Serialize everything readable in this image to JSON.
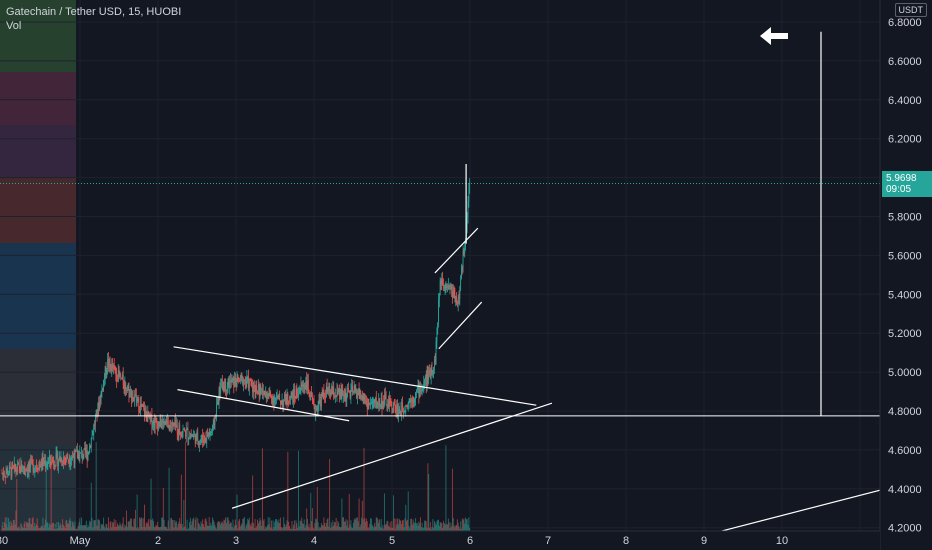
{
  "header": {
    "symbol_line": "Gatechain / Tether USD, 15, HUOBI",
    "vol_label": "Vol",
    "currency": "USDT"
  },
  "chart_data": {
    "type": "candlestick",
    "title": "Gatechain / Tether USD, 15, HUOBI",
    "y_axis": {
      "ticks": [
        "6.8000",
        "6.6000",
        "6.4000",
        "6.2000",
        "6.0000",
        "5.8000",
        "5.6000",
        "5.4000",
        "5.2000",
        "5.0000",
        "4.8000",
        "4.6000",
        "4.4000",
        "4.2000"
      ],
      "range": [
        4.2,
        6.8
      ]
    },
    "x_axis": {
      "ticks": [
        "30",
        "May",
        "2",
        "3",
        "4",
        "5",
        "6",
        "7",
        "8",
        "9",
        "10"
      ],
      "range_days": [
        0,
        10.9
      ]
    },
    "last_price": "5.9698",
    "countdown": "09:05",
    "colors": {
      "up": "#26a69a",
      "down": "#ef5350",
      "bg": "#131722",
      "grid": "#1e222d",
      "axis_text": "#d1d4dc",
      "drawing": "#ffffff",
      "price_line": "#26a69a"
    },
    "drawings": [
      {
        "kind": "horizontal_line",
        "price": 4.775
      },
      {
        "kind": "trendline",
        "points": [
          [
            1.2,
            5.13
          ],
          [
            5.85,
            4.83
          ]
        ]
      },
      {
        "kind": "trendline",
        "points": [
          [
            1.25,
            4.91
          ],
          [
            3.45,
            4.75
          ]
        ]
      },
      {
        "kind": "trendline",
        "points": [
          [
            1.95,
            4.3
          ],
          [
            6.05,
            4.84
          ]
        ]
      },
      {
        "kind": "trendline",
        "points": [
          [
            4.55,
            5.51
          ],
          [
            5.1,
            5.74
          ]
        ]
      },
      {
        "kind": "trendline",
        "points": [
          [
            4.6,
            5.12
          ],
          [
            5.15,
            5.36
          ]
        ]
      },
      {
        "kind": "trendline",
        "points": [
          [
            4.95,
            6.07
          ],
          [
            4.95,
            5.66
          ]
        ]
      },
      {
        "kind": "trendline",
        "points": [
          [
            8.2,
            4.18
          ],
          [
            11.0,
            4.47
          ]
        ]
      },
      {
        "kind": "vertical_line",
        "points": [
          [
            9.5,
            4.775
          ],
          [
            9.5,
            6.75
          ]
        ]
      }
    ],
    "arrow_icon": "arrow-left-icon"
  }
}
